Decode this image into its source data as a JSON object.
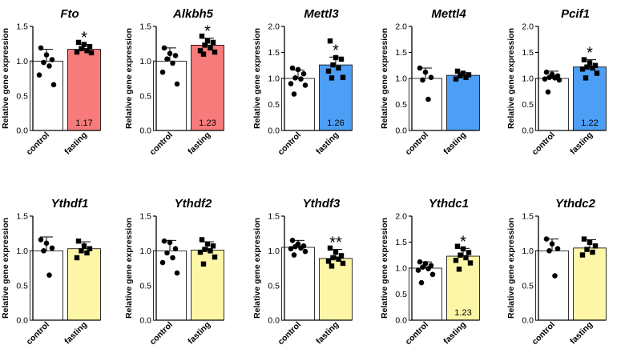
{
  "chart_data": [
    {
      "type": "bar",
      "title": "Fto",
      "ylabel": "Relative gene expression",
      "categories": [
        "control",
        "fasting"
      ],
      "ylim": [
        0,
        1.5
      ],
      "yticks": [
        "0.0",
        "0.5",
        "1.0",
        "1.5"
      ],
      "values": [
        1.0,
        1.17
      ],
      "errors": [
        0.17,
        0.07
      ],
      "colors": [
        "#ffffff",
        "#f77b7b"
      ],
      "points": [
        [
          1.19,
          1.09,
          1.02,
          0.98,
          0.93,
          0.8,
          0.66
        ],
        [
          1.27,
          1.24,
          1.21,
          1.18,
          1.15,
          1.13,
          1.12
        ]
      ],
      "significance": "*",
      "data_label": "1.17"
    },
    {
      "type": "bar",
      "title": "Alkbh5",
      "ylabel": "Relative gene expression",
      "categories": [
        "control",
        "fasting"
      ],
      "ylim": [
        0,
        1.5
      ],
      "yticks": [
        "0.0",
        "0.5",
        "1.0",
        "1.5"
      ],
      "values": [
        1.0,
        1.23
      ],
      "errors": [
        0.19,
        0.1
      ],
      "colors": [
        "#ffffff",
        "#f77b7b"
      ],
      "points": [
        [
          1.19,
          1.11,
          1.08,
          1.03,
          0.97,
          0.84,
          0.67
        ],
        [
          1.36,
          1.29,
          1.27,
          1.23,
          1.19,
          1.15,
          1.13,
          1.1
        ]
      ],
      "significance": "*",
      "data_label": "1.23"
    },
    {
      "type": "bar",
      "title": "Mettl3",
      "ylabel": "Relative gene expression",
      "categories": [
        "control",
        "fasting"
      ],
      "ylim": [
        0,
        2.0
      ],
      "yticks": [
        "0.0",
        "0.5",
        "1.0",
        "1.5",
        "2.0"
      ],
      "values": [
        1.0,
        1.26
      ],
      "errors": [
        0.16,
        0.15
      ],
      "colors": [
        "#ffffff",
        "#4d9ff5"
      ],
      "points": [
        [
          1.2,
          1.17,
          1.09,
          1.01,
          0.99,
          0.9,
          0.87,
          0.7
        ],
        [
          1.72,
          1.4,
          1.37,
          1.26,
          1.2,
          1.14,
          1.02,
          1.01
        ]
      ],
      "significance": "*",
      "data_label": "1.26"
    },
    {
      "type": "bar",
      "title": "Mettl4",
      "ylabel": "Relative gene expression",
      "categories": [
        "control",
        "fasting"
      ],
      "ylim": [
        0,
        2.0
      ],
      "yticks": [
        "0.0",
        "0.5",
        "1.0",
        "1.5",
        "2.0"
      ],
      "values": [
        1.0,
        1.06
      ],
      "errors": [
        0.2,
        0.05
      ],
      "colors": [
        "#ffffff",
        "#4d9ff5"
      ],
      "points": [
        [
          1.2,
          1.12,
          1.02,
          0.97,
          0.6
        ],
        [
          1.14,
          1.1,
          1.07,
          1.05,
          1.02,
          0.99
        ]
      ],
      "significance": "",
      "data_label": ""
    },
    {
      "type": "bar",
      "title": "Pcif1",
      "ylabel": "Relative gene expression",
      "categories": [
        "control",
        "fasting"
      ],
      "ylim": [
        0,
        2.0
      ],
      "yticks": [
        "0.0",
        "0.5",
        "1.0",
        "1.5",
        "2.0"
      ],
      "values": [
        1.0,
        1.22
      ],
      "errors": [
        0.14,
        0.14
      ],
      "colors": [
        "#ffffff",
        "#4d9ff5"
      ],
      "points": [
        [
          1.12,
          1.08,
          1.05,
          1.02,
          1.01,
          0.99,
          0.97,
          0.74
        ],
        [
          1.36,
          1.3,
          1.25,
          1.22,
          1.2,
          1.18,
          1.1,
          1.01
        ]
      ],
      "significance": "*",
      "data_label": "1.22"
    },
    {
      "type": "bar",
      "title": "Ythdf1",
      "ylabel": "Relative gene expression",
      "categories": [
        "control",
        "fasting"
      ],
      "ylim": [
        0,
        1.5
      ],
      "yticks": [
        "0.0",
        "0.5",
        "1.0",
        "1.5"
      ],
      "values": [
        1.0,
        1.03
      ],
      "errors": [
        0.2,
        0.1
      ],
      "colors": [
        "#ffffff",
        "#fdf6a6"
      ],
      "points": [
        [
          1.16,
          1.11,
          1.04,
          1.0,
          0.65
        ],
        [
          1.14,
          1.07,
          1.03,
          1.0,
          0.97,
          0.9
        ]
      ],
      "significance": "",
      "data_label": ""
    },
    {
      "type": "bar",
      "title": "Ythdf2",
      "ylabel": "Relative gene expression",
      "categories": [
        "control",
        "fasting"
      ],
      "ylim": [
        0,
        1.5
      ],
      "yticks": [
        "0.0",
        "0.5",
        "1.0",
        "1.5"
      ],
      "values": [
        1.0,
        1.01
      ],
      "errors": [
        0.15,
        0.12
      ],
      "colors": [
        "#ffffff",
        "#fdf6a6"
      ],
      "points": [
        [
          1.14,
          1.12,
          1.03,
          0.97,
          0.9,
          0.83,
          0.68
        ],
        [
          1.16,
          1.1,
          1.07,
          1.02,
          1.0,
          0.98,
          0.91,
          0.81
        ]
      ],
      "significance": "",
      "data_label": ""
    },
    {
      "type": "bar",
      "title": "Ythdf3",
      "ylabel": "Relative gene expression",
      "categories": [
        "control",
        "fasting"
      ],
      "ylim": [
        0,
        1.5
      ],
      "yticks": [
        "0.0",
        "0.5",
        "1.0",
        "1.5"
      ],
      "values": [
        1.05,
        0.89
      ],
      "errors": [
        0.1,
        0.13
      ],
      "colors": [
        "#ffffff",
        "#fdf6a6"
      ],
      "points": [
        [
          1.15,
          1.1,
          1.07,
          1.06,
          1.04,
          1.03,
          0.99,
          0.94
        ],
        [
          1.04,
          0.98,
          0.93,
          0.9,
          0.88,
          0.85,
          0.82,
          0.78
        ]
      ],
      "significance": "**",
      "data_label": ""
    },
    {
      "type": "bar",
      "title": "Ythdc1",
      "ylabel": "Relative gene expression",
      "categories": [
        "control",
        "fasting"
      ],
      "ylim": [
        0,
        2.0
      ],
      "yticks": [
        "0.0",
        "0.5",
        "1.0",
        "1.5",
        "2.0"
      ],
      "values": [
        1.0,
        1.23
      ],
      "errors": [
        0.12,
        0.15
      ],
      "colors": [
        "#ffffff",
        "#fdf6a6"
      ],
      "points": [
        [
          1.12,
          1.09,
          1.05,
          1.02,
          0.99,
          0.96,
          0.88,
          0.72
        ],
        [
          1.42,
          1.37,
          1.3,
          1.25,
          1.2,
          1.15,
          1.1,
          0.98
        ]
      ],
      "significance": "*",
      "data_label": "1.23"
    },
    {
      "type": "bar",
      "title": "Ythdc2",
      "ylabel": "Relative gene expression",
      "categories": [
        "control",
        "fasting"
      ],
      "ylim": [
        0,
        1.5
      ],
      "yticks": [
        "0.0",
        "0.5",
        "1.0",
        "1.5"
      ],
      "values": [
        1.0,
        1.04
      ],
      "errors": [
        0.17,
        0.12
      ],
      "colors": [
        "#ffffff",
        "#fdf6a6"
      ],
      "points": [
        [
          1.17,
          1.1,
          1.03,
          1.0,
          0.64
        ],
        [
          1.17,
          1.12,
          1.07,
          1.02,
          0.98,
          0.94
        ]
      ],
      "significance": "",
      "data_label": ""
    }
  ]
}
